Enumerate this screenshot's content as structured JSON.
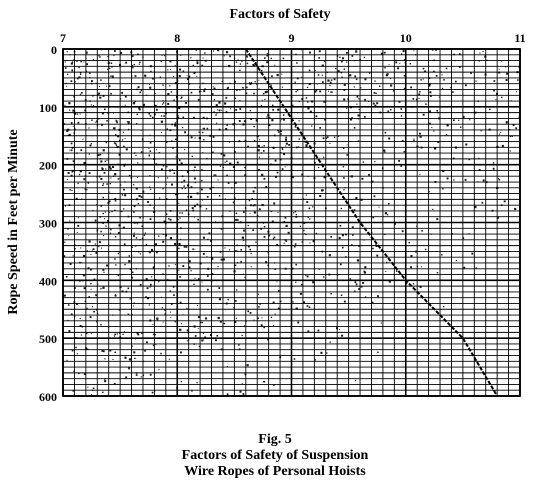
{
  "chart_data": {
    "type": "line",
    "title": "Factors of Safety",
    "xlabel": "",
    "ylabel": "Rope Speed in Feet per Minute",
    "x_ticks": [
      7,
      8,
      9,
      10,
      11
    ],
    "y_ticks": [
      0,
      100,
      200,
      300,
      400,
      500,
      600
    ],
    "xlim": [
      7,
      11
    ],
    "ylim": [
      0,
      600
    ],
    "y_inverted": true,
    "x_axis_position": "top",
    "grid": true,
    "minor_divisions_x": 10,
    "minor_divisions_y": 10,
    "series": [
      {
        "name": "",
        "x": [
          8.6,
          9.6,
          10.0,
          10.5,
          10.8
        ],
        "y": [
          0,
          300,
          400,
          500,
          600
        ]
      }
    ]
  },
  "caption": {
    "line1": "Fig. 5",
    "line2": "Factors of Safety of Suspension",
    "line3": "Wire Ropes of Personal Hoists"
  },
  "colors": {
    "ink": "#000000",
    "grid": "#000000",
    "speckle": "#1a1a1a",
    "background": "#ffffff"
  }
}
